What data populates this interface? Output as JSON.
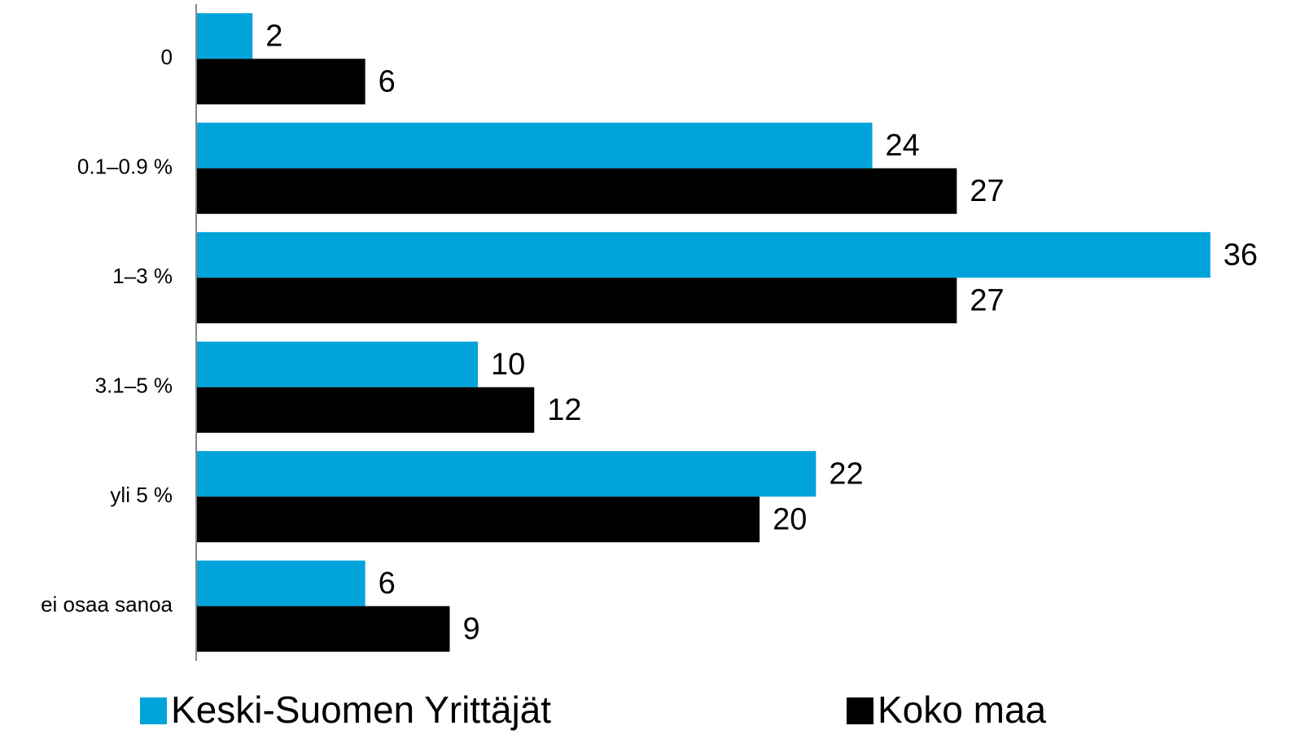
{
  "chart_data": {
    "type": "hbar",
    "categories": [
      "0",
      "0.1–0.9 %",
      "1–3 %",
      "3.1–5 %",
      "yli 5 %",
      "ei osaa sanoa"
    ],
    "series": [
      {
        "name": "Keski-Suomen Yrittäjät",
        "color": "#00a3da",
        "values": [
          2,
          24,
          36,
          10,
          22,
          6
        ]
      },
      {
        "name": "Koko maa",
        "color": "#000000",
        "values": [
          6,
          27,
          27,
          12,
          20,
          9
        ]
      }
    ],
    "xlim": [
      0,
      38
    ],
    "legend": "bottom"
  }
}
